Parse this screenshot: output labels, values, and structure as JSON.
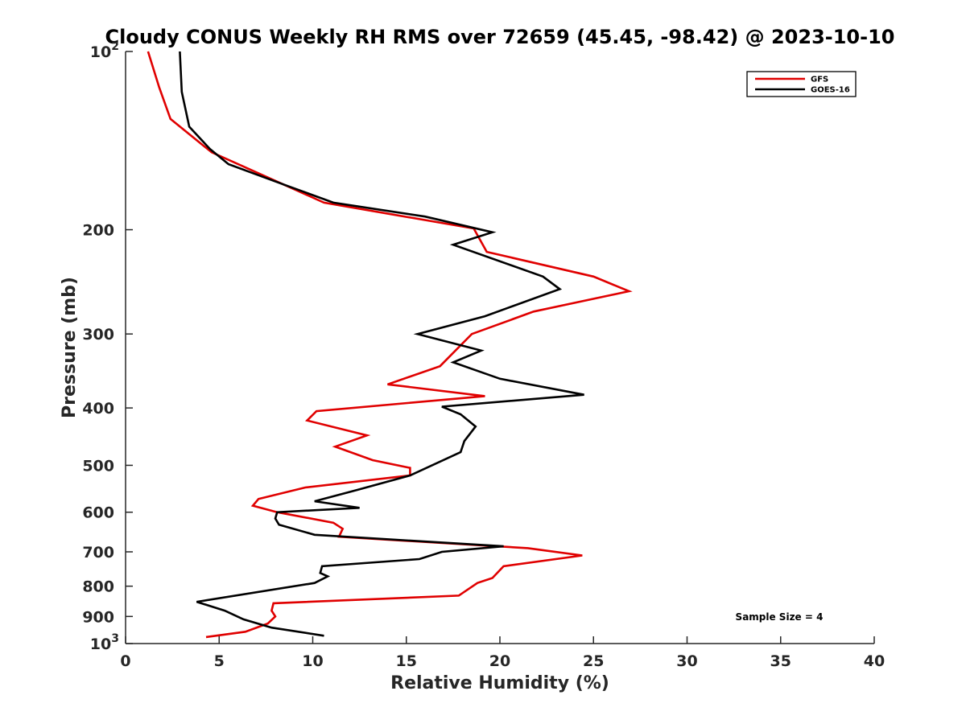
{
  "chart_data": {
    "type": "line",
    "title": "Cloudy CONUS Weekly RH RMS over 72659 (45.45, -98.42) @ 2023-10-10",
    "xlabel": "Relative Humidity (%)",
    "ylabel": "Pressure (mb)",
    "xlim": [
      0,
      40
    ],
    "ylim": [
      100,
      1000
    ],
    "y_scale": "log",
    "y_reversed": true,
    "grid": false,
    "legend_position": "top-right",
    "x_ticks": [
      "0",
      "5",
      "10",
      "15",
      "20",
      "25",
      "30",
      "35",
      "40"
    ],
    "x_tick_values": [
      0,
      5,
      10,
      15,
      20,
      25,
      30,
      35,
      40
    ],
    "y_ticks": [
      {
        "value": 100,
        "base": "10",
        "exp": "2"
      },
      {
        "value": 200,
        "base": "200",
        "exp": ""
      },
      {
        "value": 300,
        "base": "300",
        "exp": ""
      },
      {
        "value": 400,
        "base": "400",
        "exp": ""
      },
      {
        "value": 500,
        "base": "500",
        "exp": ""
      },
      {
        "value": 600,
        "base": "600",
        "exp": ""
      },
      {
        "value": 700,
        "base": "700",
        "exp": ""
      },
      {
        "value": 800,
        "base": "800",
        "exp": ""
      },
      {
        "value": 900,
        "base": "900",
        "exp": ""
      },
      {
        "value": 1000,
        "base": "10",
        "exp": "3"
      }
    ],
    "annotation": "Sample Size = 4",
    "series": [
      {
        "name": "GFS",
        "color": "#e00000",
        "points": [
          [
            1.2,
            100
          ],
          [
            1.8,
            115
          ],
          [
            2.4,
            130
          ],
          [
            4.6,
            148
          ],
          [
            10.6,
            180
          ],
          [
            18.6,
            199
          ],
          [
            19.3,
            218
          ],
          [
            25.0,
            240
          ],
          [
            26.9,
            254
          ],
          [
            21.8,
            275
          ],
          [
            18.5,
            300
          ],
          [
            16.8,
            340
          ],
          [
            14.0,
            365
          ],
          [
            19.2,
            382
          ],
          [
            10.2,
            405
          ],
          [
            9.7,
            420
          ],
          [
            12.9,
            445
          ],
          [
            11.2,
            465
          ],
          [
            13.2,
            490
          ],
          [
            15.2,
            505
          ],
          [
            15.2,
            520
          ],
          [
            9.6,
            545
          ],
          [
            7.1,
            570
          ],
          [
            6.8,
            585
          ],
          [
            8.1,
            600
          ],
          [
            11.1,
            625
          ],
          [
            11.6,
            640
          ],
          [
            11.4,
            660
          ],
          [
            21.5,
            690
          ],
          [
            24.4,
            710
          ],
          [
            20.2,
            740
          ],
          [
            19.6,
            775
          ],
          [
            18.8,
            790
          ],
          [
            17.8,
            830
          ],
          [
            7.9,
            855
          ],
          [
            7.8,
            880
          ],
          [
            8.0,
            900
          ],
          [
            7.6,
            925
          ],
          [
            6.4,
            955
          ],
          [
            4.3,
            975
          ]
        ]
      },
      {
        "name": "GOES-16",
        "color": "#000000",
        "points": [
          [
            2.9,
            100
          ],
          [
            3.0,
            117
          ],
          [
            3.4,
            134
          ],
          [
            4.5,
            146
          ],
          [
            5.5,
            155
          ],
          [
            8.5,
            168
          ],
          [
            11.1,
            180
          ],
          [
            16.0,
            190
          ],
          [
            19.6,
            202
          ],
          [
            17.5,
            212
          ],
          [
            22.3,
            240
          ],
          [
            23.2,
            252
          ],
          [
            19.2,
            280
          ],
          [
            15.6,
            300
          ],
          [
            19.0,
            320
          ],
          [
            17.5,
            335
          ],
          [
            20.0,
            357
          ],
          [
            24.5,
            380
          ],
          [
            16.9,
            398
          ],
          [
            17.9,
            410
          ],
          [
            18.7,
            430
          ],
          [
            18.1,
            455
          ],
          [
            17.9,
            475
          ],
          [
            15.2,
            520
          ],
          [
            12.4,
            550
          ],
          [
            10.1,
            575
          ],
          [
            12.5,
            590
          ],
          [
            8.1,
            600
          ],
          [
            8.0,
            615
          ],
          [
            8.2,
            630
          ],
          [
            10.1,
            655
          ],
          [
            20.2,
            685
          ],
          [
            16.9,
            700
          ],
          [
            15.7,
            720
          ],
          [
            10.5,
            740
          ],
          [
            10.4,
            760
          ],
          [
            10.8,
            770
          ],
          [
            10.1,
            790
          ],
          [
            3.8,
            850
          ],
          [
            5.3,
            880
          ],
          [
            6.3,
            910
          ],
          [
            7.8,
            940
          ],
          [
            10.6,
            970
          ]
        ]
      }
    ]
  }
}
